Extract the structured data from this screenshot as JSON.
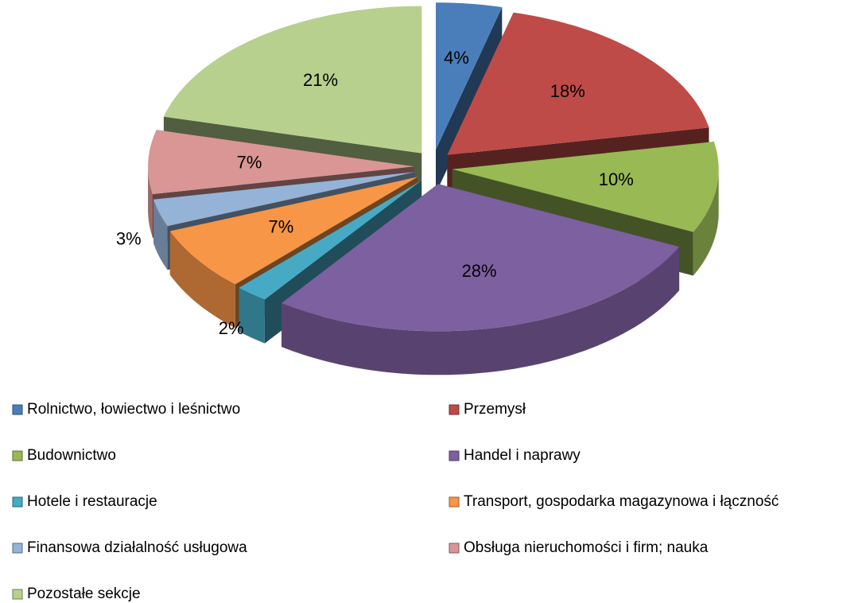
{
  "chart_data": {
    "type": "pie",
    "categories": [
      "Rolnictwo, łowiectwo i leśnictwo",
      "Przemysł",
      "Budownictwo",
      "Handel i naprawy",
      "Hotele i restauracje",
      "Transport, gospodarka magazynowa i łączność",
      "Finansowa działalność usługowa",
      "Obsługa nieruchomości i firm; nauka",
      "Pozostałe sekcje"
    ],
    "values": [
      4,
      18,
      10,
      28,
      2,
      7,
      3,
      7,
      21
    ],
    "value_labels": [
      "4%",
      "18%",
      "10%",
      "28%",
      "2%",
      "7%",
      "3%",
      "7%",
      "21%"
    ],
    "colors": [
      "#4a7ebb",
      "#be4b48",
      "#98b954",
      "#7d60a0",
      "#46aac5",
      "#f79646",
      "#95b3d7",
      "#d99694",
      "#b7d08e"
    ],
    "legend": "bottom"
  }
}
